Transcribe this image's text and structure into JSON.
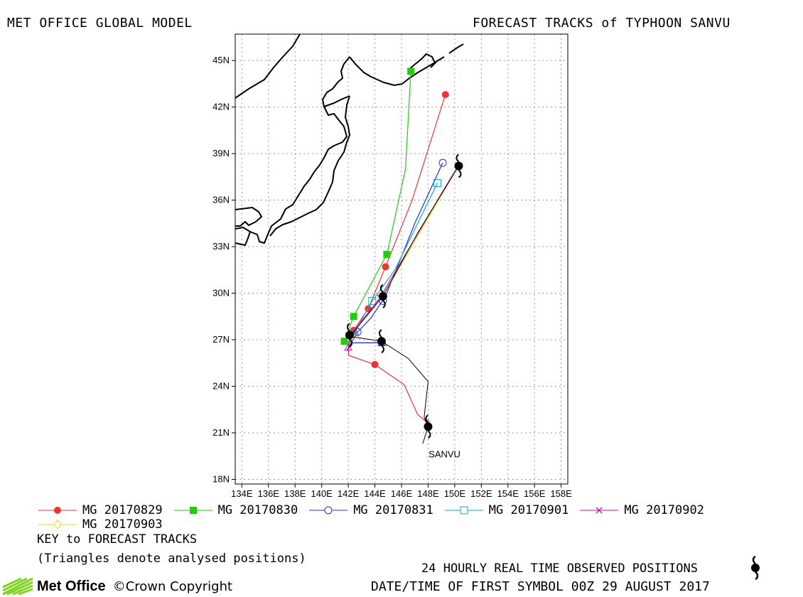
{
  "header": {
    "left_title": "MET OFFICE GLOBAL MODEL",
    "right_title": "FORECAST TRACKS of TYPHOON SANVU"
  },
  "colors": {
    "MG 20170829": "#ee3333",
    "MG 20170830": "#22cc11",
    "MG 20170831": "#2233cc",
    "MG 20170901": "#11aacc",
    "MG 20170902": "#cc1199",
    "MG 20170903": "#dddd22",
    "observed": "#000000",
    "coast": "#000000",
    "grid": "#999999"
  },
  "chart_data": {
    "type": "map-tracks",
    "title": "FORECAST TRACKS of TYPHOON SANVU",
    "x_ticks": [
      "134E",
      "136E",
      "138E",
      "140E",
      "142E",
      "144E",
      "146E",
      "148E",
      "150E",
      "152E",
      "154E",
      "156E",
      "158E"
    ],
    "y_ticks": [
      "18N",
      "21N",
      "24N",
      "27N",
      "30N",
      "33N",
      "36N",
      "39N",
      "42N",
      "45N"
    ],
    "xlim": [
      133.5,
      158.5
    ],
    "ylim": [
      17.7,
      46.7
    ],
    "grid": true,
    "storm_label": {
      "text": "SANVU",
      "lon": 149.0,
      "lat": 19.6
    },
    "series": [
      {
        "name": "MG 20170829",
        "marker": "circle-filled",
        "points": [
          [
            148.0,
            21.6
          ],
          [
            147.2,
            22.2
          ],
          [
            146.2,
            24.1
          ],
          [
            144.0,
            25.4
          ],
          [
            142.0,
            26.0
          ],
          [
            142.1,
            27.0
          ],
          [
            142.4,
            27.6
          ],
          [
            143.5,
            29.0
          ],
          [
            144.8,
            31.7
          ],
          [
            146.8,
            36.0
          ],
          [
            149.3,
            42.8
          ]
        ],
        "markers": [
          [
            144.0,
            25.4
          ],
          [
            142.4,
            27.6
          ],
          [
            143.5,
            29.0
          ],
          [
            144.8,
            31.7
          ],
          [
            149.3,
            42.8
          ]
        ]
      },
      {
        "name": "MG 20170830",
        "marker": "square-filled",
        "points": [
          [
            144.6,
            26.8
          ],
          [
            142.2,
            26.8
          ],
          [
            141.7,
            26.9
          ],
          [
            142.4,
            28.5
          ],
          [
            144.9,
            32.5
          ],
          [
            146.3,
            38.0
          ],
          [
            146.7,
            44.3
          ]
        ],
        "markers": [
          [
            141.7,
            26.9
          ],
          [
            142.4,
            28.5
          ],
          [
            144.9,
            32.5
          ],
          [
            146.7,
            44.3
          ]
        ]
      },
      {
        "name": "MG 20170831",
        "marker": "circle-open",
        "points": [
          [
            144.5,
            26.8
          ],
          [
            142.3,
            26.8
          ],
          [
            141.9,
            26.3
          ],
          [
            142.7,
            27.5
          ],
          [
            143.7,
            28.4
          ],
          [
            144.8,
            29.8
          ],
          [
            147.0,
            34.5
          ],
          [
            149.1,
            38.4
          ]
        ],
        "markers": [
          [
            142.7,
            27.5
          ],
          [
            144.6,
            29.5
          ],
          [
            149.1,
            38.4
          ]
        ]
      },
      {
        "name": "MG 20170901",
        "marker": "square-open",
        "points": [
          [
            142.5,
            27.5
          ],
          [
            143.8,
            29.5
          ],
          [
            145.5,
            31.5
          ],
          [
            148.7,
            37.1
          ]
        ],
        "markers": [
          [
            143.8,
            29.5
          ],
          [
            148.7,
            37.1
          ]
        ]
      },
      {
        "name": "MG 20170902",
        "marker": "x",
        "points": [
          [
            142.0,
            26.5
          ],
          [
            142.1,
            27.2
          ],
          [
            144.3,
            29.6
          ],
          [
            150.1,
            38.0
          ]
        ],
        "markers": [
          [
            144.4,
            29.7
          ]
        ]
      },
      {
        "name": "MG 20170903",
        "marker": "diamond-open",
        "points": [
          [
            144.6,
            29.8
          ],
          [
            150.2,
            38.1
          ]
        ],
        "markers": []
      }
    ],
    "observed": {
      "name": "24 HOURLY REAL TIME OBSERVED POSITIONS",
      "points": [
        [
          147.6,
          20.3
        ],
        [
          148.0,
          21.4
        ],
        [
          147.7,
          22.0
        ],
        [
          148.0,
          24.3
        ],
        [
          146.5,
          25.8
        ],
        [
          144.5,
          26.9
        ],
        [
          142.2,
          27.2
        ],
        [
          142.1,
          27.2
        ],
        [
          144.6,
          29.8
        ],
        [
          147.3,
          34.0
        ],
        [
          150.3,
          38.2
        ]
      ],
      "symbols": [
        [
          148.0,
          21.4
        ],
        [
          144.5,
          26.9
        ],
        [
          142.1,
          27.3
        ],
        [
          144.6,
          29.8
        ],
        [
          150.3,
          38.2
        ]
      ]
    }
  },
  "legend": {
    "key_title": "KEY to FORECAST TRACKS",
    "key_note": "(Triangles denote analysed positions)"
  },
  "footer": {
    "observed_label": "24 HOURLY REAL TIME OBSERVED POSITIONS",
    "datetime_label": "DATE/TIME OF FIRST SYMBOL 00Z 29 AUGUST 2017",
    "logo_text": "Met Office",
    "copyright": "©Crown Copyright"
  }
}
